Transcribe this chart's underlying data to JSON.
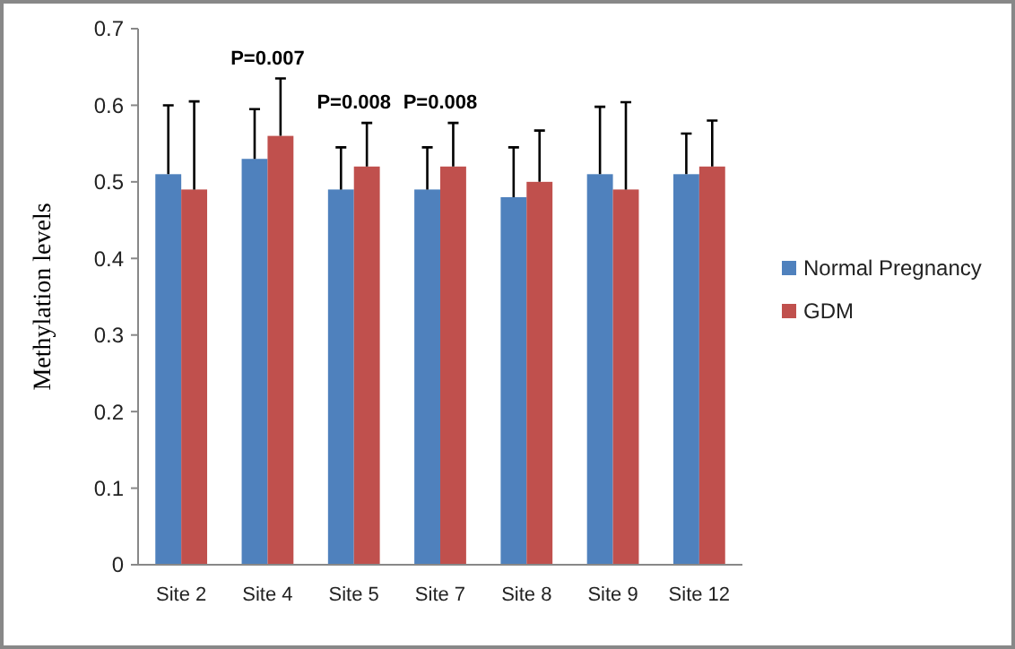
{
  "chart_data": {
    "type": "bar",
    "ylabel": "Methylation levels",
    "categories": [
      "Site 2",
      "Site 4",
      "Site 5",
      "Site 7",
      "Site 8",
      "Site 9",
      "Site 12"
    ],
    "series": [
      {
        "name": "Normal Pregnancy",
        "color": "#4f81bd",
        "values": [
          0.51,
          0.53,
          0.49,
          0.49,
          0.48,
          0.51,
          0.51
        ],
        "errors": [
          [
            0.51,
            0.6
          ],
          [
            0.53,
            0.595
          ],
          [
            0.49,
            0.545
          ],
          [
            0.49,
            0.545
          ],
          [
            0.48,
            0.545
          ],
          [
            0.51,
            0.598
          ],
          [
            0.51,
            0.563
          ]
        ]
      },
      {
        "name": "GDM",
        "color": "#c0504d",
        "values": [
          0.49,
          0.56,
          0.52,
          0.52,
          0.5,
          0.49,
          0.52
        ],
        "errors": [
          [
            0.49,
            0.605
          ],
          [
            0.56,
            0.635
          ],
          [
            0.52,
            0.577
          ],
          [
            0.52,
            0.577
          ],
          [
            0.5,
            0.567
          ],
          [
            0.49,
            0.604
          ],
          [
            0.52,
            0.58
          ]
        ]
      }
    ],
    "annotations": [
      "P=0.007",
      "P=0.008",
      "P=0.008"
    ],
    "ylim": [
      0,
      0.7
    ],
    "yticks": [
      0,
      0.1,
      0.2,
      0.3,
      0.4,
      0.5,
      0.6,
      0.7
    ],
    "grid": false,
    "legend": "right"
  }
}
